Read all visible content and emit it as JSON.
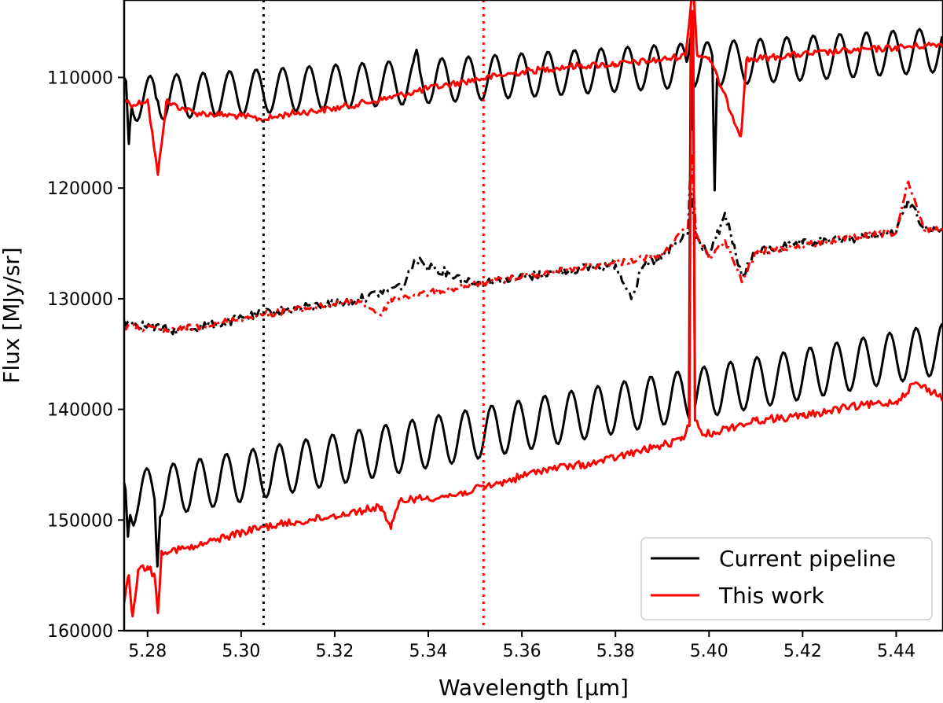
{
  "chart_data": {
    "type": "line",
    "title": "",
    "xlabel": "Wavelength [μm]",
    "ylabel": "Flux [MJy/sr]",
    "xlim": [
      5.275,
      5.45
    ],
    "ylim": [
      160000,
      103000
    ],
    "y_inverted": true,
    "x_ticks": [
      5.28,
      5.3,
      5.32,
      5.34,
      5.36,
      5.38,
      5.4,
      5.42,
      5.44
    ],
    "x_tick_labels": [
      "5.28",
      "5.30",
      "5.32",
      "5.34",
      "5.36",
      "5.38",
      "5.40",
      "5.42",
      "5.44"
    ],
    "y_ticks": [
      110000,
      120000,
      130000,
      140000,
      150000,
      160000
    ],
    "y_tick_labels": [
      "110000",
      "120000",
      "130000",
      "140000",
      "150000",
      "160000"
    ],
    "grid": false,
    "legend": {
      "placement": "bottom-right",
      "entries": [
        {
          "label": "Current pipeline",
          "color": "#000000"
        },
        {
          "label": "This work",
          "color": "#ff0000"
        }
      ]
    },
    "vertical_lines": [
      {
        "x": 5.3048,
        "color": "#000000",
        "style": "dotted"
      },
      {
        "x": 5.3518,
        "color": "#ff0000",
        "style": "dotted"
      }
    ],
    "series": [
      {
        "name": "Current pipeline (top)",
        "color": "#000000",
        "style": "solid",
        "legend": "Current pipeline",
        "model": {
          "base_start": 112000,
          "base_end": 107500,
          "amp": 2000,
          "period": 0.00567,
          "phase": 5.2862
        },
        "features": [
          {
            "x": 5.276,
            "y": 116000,
            "w": 0.0006
          },
          {
            "x": 5.282,
            "y": 112000,
            "w": 0.0006
          },
          {
            "x": 5.3375,
            "y": 107500,
            "w": 0.0007
          },
          {
            "x": 5.396,
            "y": 106500,
            "w": 0.0008
          },
          {
            "x": 5.4012,
            "y": 120200,
            "w": 0.0005
          }
        ]
      },
      {
        "name": "This work (top)",
        "color": "#ff0000",
        "style": "solid",
        "legend": "This work",
        "points": [
          [
            5.275,
            112000
          ],
          [
            5.277,
            112500
          ],
          [
            5.28,
            112000
          ],
          [
            5.2822,
            118800
          ],
          [
            5.284,
            112200
          ],
          [
            5.29,
            113200
          ],
          [
            5.3,
            113500
          ],
          [
            5.305,
            113800
          ],
          [
            5.31,
            113300
          ],
          [
            5.32,
            112800
          ],
          [
            5.33,
            112000
          ],
          [
            5.34,
            111000
          ],
          [
            5.35,
            110200
          ],
          [
            5.36,
            109500
          ],
          [
            5.37,
            109000
          ],
          [
            5.38,
            108800
          ],
          [
            5.39,
            108400
          ],
          [
            5.395,
            108000
          ],
          [
            5.3962,
            103000
          ],
          [
            5.3968,
            103000
          ],
          [
            5.3975,
            108000
          ],
          [
            5.4,
            108200
          ],
          [
            5.4068,
            115300
          ],
          [
            5.408,
            108400
          ],
          [
            5.42,
            107900
          ],
          [
            5.43,
            107600
          ],
          [
            5.44,
            107300
          ],
          [
            5.45,
            107000
          ]
        ],
        "noise": 300
      },
      {
        "name": "Current pipeline (middle)",
        "color": "#000000",
        "style": "dashdot",
        "points": [
          [
            5.275,
            132000
          ],
          [
            5.285,
            132900
          ],
          [
            5.295,
            132300
          ],
          [
            5.305,
            131300
          ],
          [
            5.315,
            130700
          ],
          [
            5.325,
            130100
          ],
          [
            5.335,
            128700
          ],
          [
            5.337,
            126500
          ],
          [
            5.34,
            127000
          ],
          [
            5.35,
            128600
          ],
          [
            5.36,
            128100
          ],
          [
            5.37,
            127400
          ],
          [
            5.38,
            126900
          ],
          [
            5.3835,
            129800
          ],
          [
            5.386,
            127000
          ],
          [
            5.39,
            126300
          ],
          [
            5.3955,
            124000
          ],
          [
            5.3962,
            120500
          ],
          [
            5.3972,
            124500
          ],
          [
            5.4,
            126000
          ],
          [
            5.4035,
            122500
          ],
          [
            5.407,
            128000
          ],
          [
            5.41,
            125800
          ],
          [
            5.42,
            125000
          ],
          [
            5.43,
            124600
          ],
          [
            5.44,
            124000
          ],
          [
            5.4425,
            121000
          ],
          [
            5.446,
            123600
          ],
          [
            5.45,
            123800
          ]
        ],
        "noise": 400
      },
      {
        "name": "This work (middle)",
        "color": "#ff0000",
        "style": "dashdot",
        "points": [
          [
            5.275,
            132500
          ],
          [
            5.285,
            132900
          ],
          [
            5.295,
            132200
          ],
          [
            5.305,
            131400
          ],
          [
            5.315,
            130800
          ],
          [
            5.325,
            130200
          ],
          [
            5.33,
            131500
          ],
          [
            5.332,
            130000
          ],
          [
            5.34,
            129500
          ],
          [
            5.35,
            128700
          ],
          [
            5.36,
            128000
          ],
          [
            5.37,
            127300
          ],
          [
            5.38,
            126800
          ],
          [
            5.39,
            126000
          ],
          [
            5.3955,
            123500
          ],
          [
            5.3962,
            116800
          ],
          [
            5.3972,
            124000
          ],
          [
            5.4,
            126300
          ],
          [
            5.4035,
            124800
          ],
          [
            5.407,
            128500
          ],
          [
            5.41,
            125800
          ],
          [
            5.42,
            125200
          ],
          [
            5.43,
            124500
          ],
          [
            5.44,
            124000
          ],
          [
            5.4425,
            119500
          ],
          [
            5.446,
            123800
          ],
          [
            5.45,
            123600
          ]
        ],
        "noise": 300
      },
      {
        "name": "Current pipeline (bottom)",
        "color": "#000000",
        "style": "solid",
        "legend": "Current pipeline",
        "model": {
          "base_start": 148000,
          "base_end": 134500,
          "amp": 2300,
          "period": 0.00567,
          "phase": 5.2855
        },
        "features": [
          {
            "x": 5.2758,
            "y": 151500,
            "w": 0.0005
          },
          {
            "x": 5.277,
            "y": 150500,
            "w": 0.0005
          },
          {
            "x": 5.2821,
            "y": 154200,
            "w": 0.0006
          },
          {
            "x": 5.3961,
            "y": 106000,
            "w": 0.0004
          },
          {
            "x": 5.3966,
            "y": 106000,
            "w": 0.0004
          }
        ]
      },
      {
        "name": "This work (bottom)",
        "color": "#ff0000",
        "style": "solid",
        "legend": "This work",
        "points": [
          [
            5.275,
            157500
          ],
          [
            5.276,
            155000
          ],
          [
            5.2768,
            158700
          ],
          [
            5.278,
            154500
          ],
          [
            5.28,
            154200
          ],
          [
            5.2815,
            155000
          ],
          [
            5.2822,
            158400
          ],
          [
            5.283,
            152800
          ],
          [
            5.29,
            152500
          ],
          [
            5.295,
            151700
          ],
          [
            5.305,
            150600
          ],
          [
            5.315,
            150000
          ],
          [
            5.325,
            149200
          ],
          [
            5.33,
            148800
          ],
          [
            5.332,
            150800
          ],
          [
            5.334,
            148200
          ],
          [
            5.345,
            147800
          ],
          [
            5.355,
            146700
          ],
          [
            5.365,
            145400
          ],
          [
            5.375,
            144900
          ],
          [
            5.385,
            143800
          ],
          [
            5.394,
            142800
          ],
          [
            5.3958,
            141500
          ],
          [
            5.3962,
            104000
          ],
          [
            5.3966,
            104000
          ],
          [
            5.397,
            141000
          ],
          [
            5.399,
            142300
          ],
          [
            5.41,
            141000
          ],
          [
            5.42,
            140600
          ],
          [
            5.43,
            139800
          ],
          [
            5.44,
            139300
          ],
          [
            5.444,
            137600
          ],
          [
            5.45,
            138900
          ]
        ],
        "noise": 350
      }
    ]
  }
}
